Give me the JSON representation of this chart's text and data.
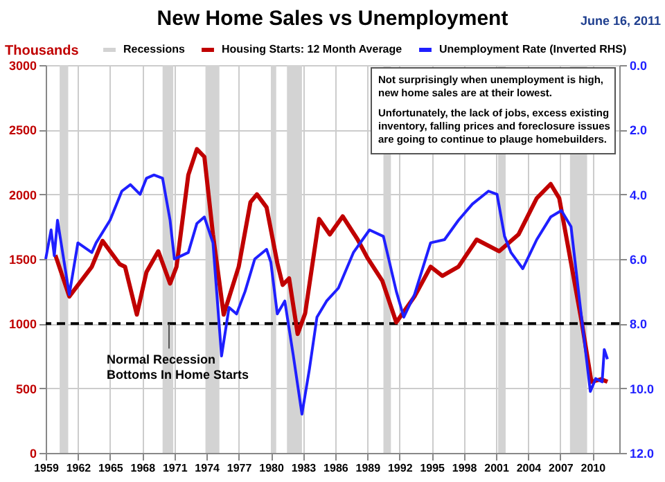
{
  "chart_data": {
    "type": "line",
    "title": "New Home Sales vs Unemployment",
    "ylabel": "Thousands",
    "series": [
      {
        "name": "Housing Starts: 12 Month Average",
        "color": "#c00000",
        "axis": "y",
        "x": [
          1959.9,
          1961.2,
          1963.3,
          1964.3,
          1965.9,
          1966.4,
          1967.5,
          1968.4,
          1969.5,
          1970.6,
          1971.2,
          1972.3,
          1973.1,
          1973.8,
          1974.6,
          1975.6,
          1977.0,
          1978.1,
          1978.7,
          1979.6,
          1980.6,
          1981.1,
          1981.7,
          1982.5,
          1983.2,
          1984.5,
          1985.5,
          1986.7,
          1988.1,
          1989.0,
          1990.4,
          1991.7,
          1993.4,
          1994.9,
          1996.0,
          1997.5,
          1999.2,
          2001.3,
          2003.1,
          2004.8,
          2006.1,
          2006.9,
          2008.0,
          2009.0,
          2009.9,
          2010.8,
          2011.4
        ],
        "values": [
          1530,
          1210,
          1440,
          1640,
          1460,
          1440,
          1070,
          1400,
          1560,
          1310,
          1440,
          2150,
          2350,
          2290,
          1690,
          1070,
          1440,
          1940,
          2000,
          1900,
          1470,
          1300,
          1350,
          920,
          1080,
          1810,
          1690,
          1830,
          1650,
          1510,
          1330,
          1010,
          1210,
          1440,
          1370,
          1440,
          1650,
          1560,
          1690,
          1970,
          2080,
          1970,
          1470,
          1010,
          550,
          570,
          550
        ]
      },
      {
        "name": "Unemployment Rate (Inverted RHS)",
        "color": "#1f1fff",
        "axis": "y2",
        "x": [
          1959.0,
          1959.5,
          1959.8,
          1960.1,
          1961.2,
          1962.0,
          1963.3,
          1963.7,
          1965.0,
          1966.1,
          1966.9,
          1967.8,
          1968.4,
          1969.1,
          1969.9,
          1970.6,
          1971.0,
          1972.3,
          1973.1,
          1973.8,
          1974.6,
          1975.4,
          1976.1,
          1976.8,
          1977.6,
          1978.5,
          1979.6,
          1980.0,
          1980.6,
          1981.3,
          1982.1,
          1982.9,
          1983.6,
          1984.3,
          1985.2,
          1986.3,
          1987.7,
          1989.2,
          1990.5,
          1991.7,
          1992.4,
          1993.4,
          1994.9,
          1996.2,
          1997.5,
          1998.8,
          2000.3,
          2001.1,
          2001.8,
          2002.4,
          2003.5,
          2004.8,
          2006.1,
          2007.1,
          2008.0,
          2008.8,
          2009.8,
          2010.3,
          2010.9,
          2011.1,
          2011.4
        ],
        "values": [
          6.0,
          5.1,
          5.9,
          4.8,
          7.1,
          5.5,
          5.8,
          5.5,
          4.8,
          3.9,
          3.7,
          4.0,
          3.5,
          3.4,
          3.5,
          4.8,
          6.0,
          5.8,
          4.9,
          4.7,
          5.5,
          9.0,
          7.5,
          7.7,
          7.0,
          6.0,
          5.7,
          6.1,
          7.7,
          7.3,
          9.0,
          10.8,
          9.4,
          7.8,
          7.3,
          6.9,
          5.8,
          5.1,
          5.3,
          7.0,
          7.8,
          7.1,
          5.5,
          5.4,
          4.8,
          4.3,
          3.9,
          4.0,
          5.3,
          5.8,
          6.3,
          5.4,
          4.7,
          4.5,
          5.0,
          7.3,
          10.1,
          9.7,
          9.8,
          8.8,
          9.1
        ]
      }
    ],
    "xlim": [
      1959,
      2012.5
    ],
    "xticks": [
      1959,
      1962,
      1965,
      1968,
      1971,
      1974,
      1977,
      1980,
      1983,
      1986,
      1989,
      1992,
      1995,
      1998,
      2001,
      2004,
      2007,
      2010
    ],
    "ylim": [
      0,
      3000
    ],
    "yticks": [
      0,
      500,
      1000,
      1500,
      2000,
      2500,
      3000
    ],
    "y2lim": [
      12,
      0
    ],
    "y2ticks": [
      {
        "value": 0,
        "label": "0.0"
      },
      {
        "value": 2,
        "label": "2.0"
      },
      {
        "value": 4,
        "label": "4.0"
      },
      {
        "value": 6,
        "label": "6.0"
      },
      {
        "value": 8,
        "label": "8.0"
      },
      {
        "value": 10,
        "label": "10.0"
      },
      {
        "value": 12,
        "label": "12.0"
      }
    ],
    "bands": [
      {
        "axis": "x",
        "from": 1960.3,
        "to": 1961.1,
        "label": "Recessions",
        "color": "#d3d3d3"
      },
      {
        "axis": "x",
        "from": 1969.9,
        "to": 1970.9,
        "color": "#d3d3d3"
      },
      {
        "axis": "x",
        "from": 1973.9,
        "to": 1975.2,
        "color": "#d3d3d3"
      },
      {
        "axis": "x",
        "from": 1980.0,
        "to": 1980.5,
        "color": "#d3d3d3"
      },
      {
        "axis": "x",
        "from": 1981.5,
        "to": 1982.9,
        "color": "#d3d3d3"
      },
      {
        "axis": "x",
        "from": 1990.5,
        "to": 1991.2,
        "color": "#d3d3d3"
      },
      {
        "axis": "x",
        "from": 2001.2,
        "to": 2001.9,
        "color": "#d3d3d3"
      },
      {
        "axis": "x",
        "from": 2007.9,
        "to": 2009.5,
        "color": "#d3d3d3"
      }
    ],
    "ref_lines": [
      {
        "axis": "y",
        "value": 1000,
        "color": "#000000",
        "line_style": "dashed"
      }
    ],
    "annotations": [
      {
        "text": "Normal Recession\nBottoms In Home Starts",
        "x": 1970.5,
        "y": 1000
      },
      "Not surprisingly when unemployment is high,\nnew home sales are at their lowest.",
      "Unfortunately, the lack of jobs, excess  existing\ninventory, falling prices and foreclosure issues\nare going to continue to plauge homebuilders.",
      "June 16, 2011"
    ],
    "grid": true,
    "legend": "top",
    "line_style": "solid",
    "marker": "none"
  }
}
